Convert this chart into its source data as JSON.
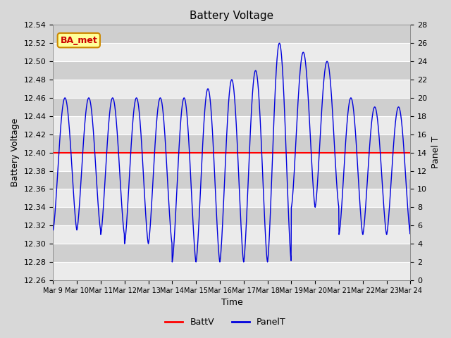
{
  "title": "Battery Voltage",
  "xlabel": "Time",
  "ylabel_left": "Battery Voltage",
  "ylabel_right": "Panel T",
  "ylim_left": [
    12.26,
    12.54
  ],
  "ylim_right": [
    0,
    28
  ],
  "battv_value": 12.4,
  "battv_color": "#ff0000",
  "panelt_color": "#0000dd",
  "bg_color": "#d8d8d8",
  "plot_bg_color": "#d8d8d8",
  "annotation_text": "BA_met",
  "annotation_bg": "#ffff99",
  "annotation_border": "#cc8800",
  "annotation_text_color": "#cc0000",
  "xtick_labels": [
    "Mar 9",
    "Mar 10",
    "Mar 11",
    "Mar 12",
    "Mar 13",
    "Mar 14",
    "Mar 15",
    "Mar 16",
    "Mar 17",
    "Mar 18",
    "Mar 19",
    "Mar 20",
    "Mar 21",
    "Mar 22",
    "Mar 23",
    "Mar 24"
  ],
  "ytick_left": [
    12.26,
    12.28,
    12.3,
    12.32,
    12.34,
    12.36,
    12.38,
    12.4,
    12.42,
    12.44,
    12.46,
    12.48,
    12.5,
    12.52,
    12.54
  ],
  "ytick_right": [
    0,
    2,
    4,
    6,
    8,
    10,
    12,
    14,
    16,
    18,
    20,
    22,
    24,
    26,
    28
  ]
}
